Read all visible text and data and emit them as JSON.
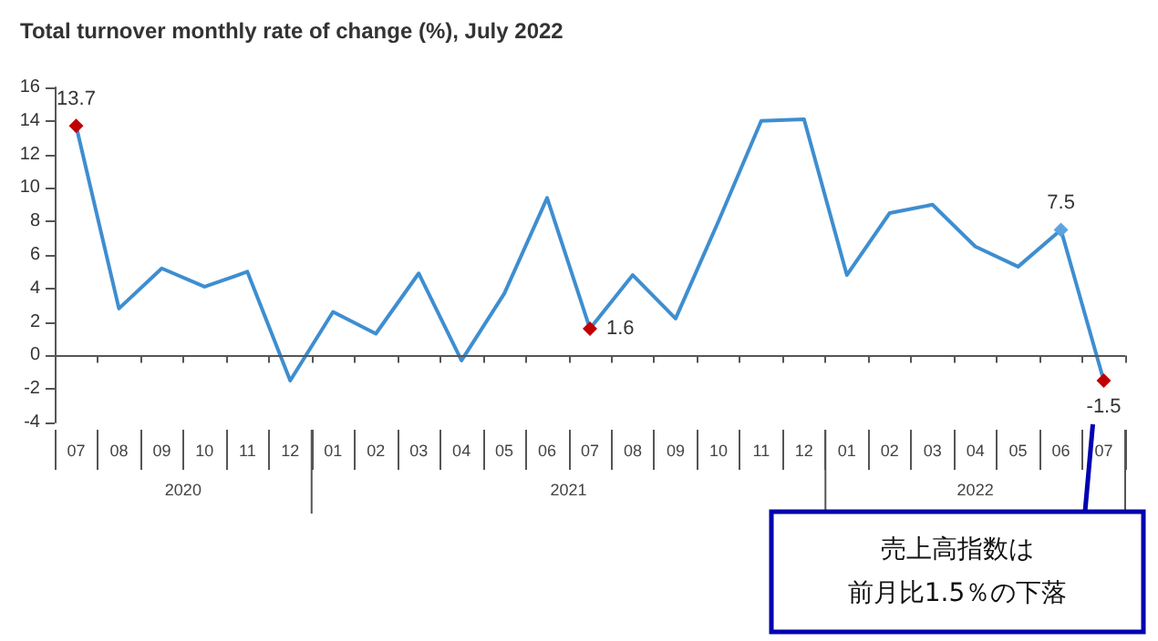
{
  "chart_data": {
    "type": "line",
    "title": "Total turnover monthly rate of change (%), July 2022",
    "categories": [
      "07",
      "08",
      "09",
      "10",
      "11",
      "12",
      "01",
      "02",
      "03",
      "04",
      "05",
      "06",
      "07",
      "08",
      "09",
      "10",
      "11",
      "12",
      "01",
      "02",
      "03",
      "04",
      "05",
      "06",
      "07"
    ],
    "series": [
      {
        "color": "#3e8ed0",
        "values": [
          13.7,
          2.8,
          5.2,
          4.1,
          5.0,
          -1.5,
          2.6,
          1.3,
          4.9,
          -0.3,
          3.7,
          9.4,
          1.6,
          4.8,
          2.2,
          8.0,
          14.0,
          14.1,
          4.8,
          8.5,
          9.0,
          6.5,
          5.3,
          7.5,
          -1.5
        ],
        "colors": [
          "#c00000",
          null,
          null,
          null,
          null,
          null,
          null,
          null,
          null,
          null,
          null,
          null,
          "#c00000",
          null,
          null,
          null,
          null,
          null,
          null,
          null,
          null,
          null,
          null,
          "#5ba3e0",
          "#c00000"
        ],
        "value_labels": [
          "13.7",
          null,
          null,
          null,
          null,
          null,
          null,
          null,
          null,
          null,
          null,
          null,
          "1.6",
          null,
          null,
          null,
          null,
          null,
          null,
          null,
          null,
          null,
          null,
          "7.5",
          "-1.5"
        ]
      }
    ],
    "ref_lines": [
      {
        "axis": "y",
        "value": 0
      }
    ],
    "ylim": [
      -4,
      16
    ],
    "yticks": [
      -4,
      -2,
      0,
      2,
      4,
      6,
      8,
      10,
      12,
      14,
      16
    ],
    "grid": false,
    "annotations": [
      "2020",
      "2021",
      "2022",
      "売上高指数は",
      "前月比1.5％の下落"
    ]
  }
}
